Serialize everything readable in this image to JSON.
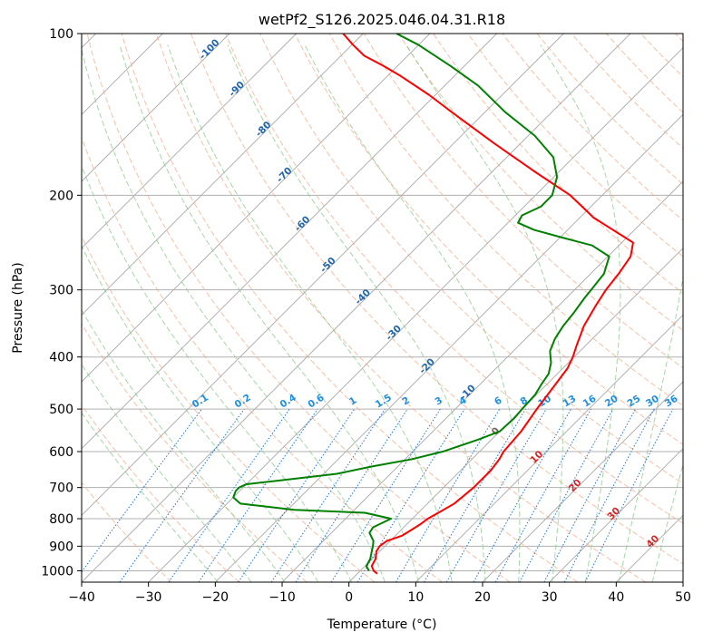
{
  "chart_data": {
    "type": "line",
    "subtype": "skew-t log-p diagram",
    "title": "wetPf2_S126.2025.046.04.31.R18",
    "xlabel": "Temperature (°C)",
    "ylabel": "Pressure (hPa)",
    "xlim": [
      -40,
      50
    ],
    "ylim": [
      1050,
      100
    ],
    "y_scale": "log",
    "grid": true,
    "x_ticks": [
      -40,
      -30,
      -20,
      -10,
      0,
      10,
      20,
      30,
      40,
      50
    ],
    "x_tick_labels": [
      "−40",
      "−30",
      "−20",
      "−10",
      "0",
      "10",
      "20",
      "30",
      "40",
      "50"
    ],
    "y_ticks": [
      1000,
      900,
      800,
      700,
      600,
      500,
      400,
      300,
      200,
      100
    ],
    "y_tick_labels": [
      "1000",
      "900",
      "800",
      "700",
      "600",
      "500",
      "400",
      "300",
      "200",
      "100"
    ],
    "dry_adiabat_labels": [
      "-100",
      "-90",
      "-80",
      "-70",
      "-60",
      "-50",
      "-40",
      "-30",
      "-20",
      "-10",
      "0",
      "10",
      "20",
      "30",
      "40"
    ],
    "mixing_ratio_labels": [
      "0.1",
      "0.2",
      "0.4",
      "0.6",
      "1",
      "1.5",
      "2",
      "3",
      "4",
      "6",
      "8",
      "10",
      "13",
      "16",
      "20",
      "25",
      "30",
      "36"
    ],
    "series": [
      {
        "color": "#ff0000",
        "points": [
          [
            1013,
            3
          ],
          [
            1000,
            2
          ],
          [
            980,
            1
          ],
          [
            950,
            0.5
          ],
          [
            920,
            -0.5
          ],
          [
            900,
            -0.8
          ],
          [
            880,
            -0.5
          ],
          [
            860,
            1
          ],
          [
            840,
            1.5
          ],
          [
            820,
            2
          ],
          [
            800,
            2.3
          ],
          [
            780,
            3
          ],
          [
            750,
            4
          ],
          [
            700,
            4.5
          ],
          [
            650,
            4.5
          ],
          [
            620,
            4.1
          ],
          [
            600,
            3.6
          ],
          [
            550,
            3.2
          ],
          [
            500,
            2.2
          ],
          [
            450,
            1.3
          ],
          [
            420,
            0.7
          ],
          [
            400,
            -0.2
          ],
          [
            380,
            -1.4
          ],
          [
            350,
            -3.2
          ],
          [
            320,
            -4.5
          ],
          [
            300,
            -5.3
          ],
          [
            280,
            -5.8
          ],
          [
            260,
            -6.6
          ],
          [
            245,
            -8.3
          ],
          [
            238,
            -10.9
          ],
          [
            230,
            -14
          ],
          [
            220,
            -18
          ],
          [
            210,
            -21.3
          ],
          [
            200,
            -24.8
          ],
          [
            180,
            -34
          ],
          [
            160,
            -44
          ],
          [
            140,
            -55
          ],
          [
            130,
            -61
          ],
          [
            120,
            -68
          ],
          [
            115,
            -72
          ],
          [
            110,
            -76.5
          ],
          [
            105,
            -79.8
          ],
          [
            100,
            -83
          ]
        ]
      },
      {
        "color": "#008000",
        "points": [
          [
            1000,
            1.3
          ],
          [
            980,
            0.2
          ],
          [
            950,
            -0.3
          ],
          [
            920,
            -1.2
          ],
          [
            900,
            -1.8
          ],
          [
            880,
            -2.5
          ],
          [
            850,
            -4.3
          ],
          [
            830,
            -4.6
          ],
          [
            800,
            -3.2
          ],
          [
            780,
            -8
          ],
          [
            770,
            -19
          ],
          [
            750,
            -28
          ],
          [
            730,
            -30
          ],
          [
            710,
            -30.6
          ],
          [
            700,
            -30.6
          ],
          [
            690,
            -30
          ],
          [
            680,
            -26
          ],
          [
            660,
            -18
          ],
          [
            640,
            -14
          ],
          [
            620,
            -9
          ],
          [
            600,
            -5.5
          ],
          [
            570,
            -2
          ],
          [
            550,
            0
          ],
          [
            520,
            0.2
          ],
          [
            500,
            0
          ],
          [
            470,
            -0.2
          ],
          [
            450,
            -0.8
          ],
          [
            430,
            -1.3
          ],
          [
            410,
            -2.6
          ],
          [
            390,
            -4.5
          ],
          [
            370,
            -5.6
          ],
          [
            350,
            -6.3
          ],
          [
            330,
            -6.7
          ],
          [
            310,
            -7.3
          ],
          [
            300,
            -7.5
          ],
          [
            280,
            -8
          ],
          [
            260,
            -9.8
          ],
          [
            248,
            -14
          ],
          [
            240,
            -19.5
          ],
          [
            232,
            -25
          ],
          [
            225,
            -28.5
          ],
          [
            218,
            -29
          ],
          [
            210,
            -27.5
          ],
          [
            200,
            -27.5
          ],
          [
            185,
            -29.5
          ],
          [
            170,
            -33
          ],
          [
            155,
            -39
          ],
          [
            140,
            -47
          ],
          [
            125,
            -55
          ],
          [
            115,
            -62
          ],
          [
            105,
            -70
          ],
          [
            100,
            -75
          ]
        ]
      }
    ]
  }
}
